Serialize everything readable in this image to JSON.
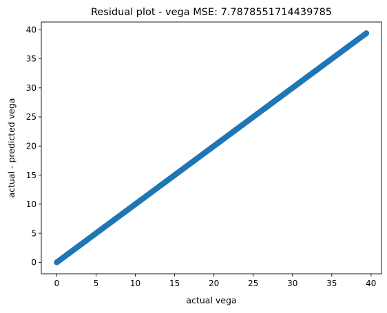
{
  "chart_data": {
    "type": "scatter",
    "title": "Residual plot - vega MSE: 7.7878551714439785",
    "xlabel": "actual vega",
    "ylabel": "actual - predicted vega",
    "xlim": [
      -1.97,
      41.33
    ],
    "ylim": [
      -1.97,
      41.33
    ],
    "xticks": [
      0,
      5,
      10,
      15,
      20,
      25,
      30,
      35,
      40
    ],
    "yticks": [
      0,
      5,
      10,
      15,
      20,
      25,
      30,
      35,
      40
    ],
    "grid": false,
    "series": [
      {
        "color": "#1f77b4",
        "marker": "circle",
        "x_range": [
          0,
          39.4
        ],
        "y_equals_x": true,
        "points": 400
      }
    ]
  }
}
